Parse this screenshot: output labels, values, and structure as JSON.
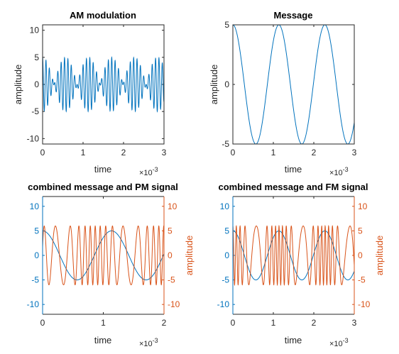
{
  "colors": {
    "blue": "#0072BD",
    "orange": "#D95319",
    "axis": "#262626"
  },
  "chart_data": [
    {
      "type": "line",
      "title": "AM modulation",
      "xlabel": "time",
      "ylabel": "amplitude",
      "x_exponent": "×10",
      "x_exponent_power": "-3",
      "xlim": [
        0,
        3
      ],
      "ylim": [
        -11,
        11
      ],
      "xticks": [
        {
          "v": 0,
          "label": "0"
        },
        {
          "v": 1,
          "label": "1"
        },
        {
          "v": 2,
          "label": "2"
        },
        {
          "v": 3,
          "label": "3"
        }
      ],
      "yticks": [
        {
          "v": -10,
          "label": "-10"
        },
        {
          "v": -5,
          "label": "-5"
        },
        {
          "v": 0,
          "label": "0"
        },
        {
          "v": 5,
          "label": "5"
        },
        {
          "v": 10,
          "label": "10"
        }
      ],
      "signal": {
        "kind": "am",
        "message_amplitude": 5,
        "message_freq_per_unit": 0.88,
        "carrier_amplitude": 1,
        "carrier_freq_per_unit": 12,
        "color": "#0072BD"
      }
    },
    {
      "type": "line",
      "title": "Message",
      "xlabel": "time",
      "ylabel": "amplitude",
      "x_exponent": "×10",
      "x_exponent_power": "-3",
      "xlim": [
        0,
        3
      ],
      "ylim": [
        -5,
        5
      ],
      "xticks": [
        {
          "v": 0,
          "label": "0"
        },
        {
          "v": 1,
          "label": "1"
        },
        {
          "v": 2,
          "label": "2"
        },
        {
          "v": 3,
          "label": "3"
        }
      ],
      "yticks": [
        {
          "v": -5,
          "label": "-5"
        },
        {
          "v": 0,
          "label": "0"
        },
        {
          "v": 5,
          "label": "5"
        }
      ],
      "signal": {
        "kind": "cos",
        "amplitude": 5,
        "freq_per_unit": 0.88,
        "color": "#0072BD"
      }
    },
    {
      "type": "line",
      "title": "combined message and PM signal",
      "xlabel": "time",
      "ylabel_right": "amplitude",
      "x_exponent": "×10",
      "x_exponent_power": "-3",
      "xlim": [
        0,
        2
      ],
      "ylim": [
        -12,
        12
      ],
      "xticks": [
        {
          "v": 0,
          "label": "0"
        },
        {
          "v": 1,
          "label": "1"
        },
        {
          "v": 2,
          "label": "2"
        }
      ],
      "yticks_left": [
        {
          "v": -10,
          "label": "-10"
        },
        {
          "v": -5,
          "label": "-5"
        },
        {
          "v": 0,
          "label": "0"
        },
        {
          "v": 5,
          "label": "5"
        },
        {
          "v": 10,
          "label": "10"
        }
      ],
      "yticks_right": [
        {
          "v": -10,
          "label": "-10"
        },
        {
          "v": -5,
          "label": "-5"
        },
        {
          "v": 0,
          "label": "0"
        },
        {
          "v": 5,
          "label": "5"
        },
        {
          "v": 10,
          "label": "10"
        }
      ],
      "series": [
        {
          "kind": "cos",
          "amplitude": 5,
          "freq_per_unit": 0.88,
          "color": "#0072BD"
        },
        {
          "kind": "pm",
          "amplitude": 6,
          "carrier_freq_per_unit": 8,
          "message_amplitude": 5,
          "message_freq_per_unit": 0.88,
          "sensitivity": 5,
          "color": "#D95319"
        }
      ]
    },
    {
      "type": "line",
      "title": "combined message and FM signal",
      "xlabel": "time",
      "ylabel_right": "amplitude",
      "x_exponent": "×10",
      "x_exponent_power": "-3",
      "xlim": [
        0,
        3
      ],
      "ylim": [
        -12,
        12
      ],
      "xticks": [
        {
          "v": 0,
          "label": "0"
        },
        {
          "v": 1,
          "label": "1"
        },
        {
          "v": 2,
          "label": "2"
        },
        {
          "v": 3,
          "label": "3"
        }
      ],
      "yticks_left": [
        {
          "v": -10,
          "label": "-10"
        },
        {
          "v": -5,
          "label": "-5"
        },
        {
          "v": 0,
          "label": "0"
        },
        {
          "v": 5,
          "label": "5"
        },
        {
          "v": 10,
          "label": "10"
        }
      ],
      "yticks_right": [
        {
          "v": -10,
          "label": "-10"
        },
        {
          "v": -5,
          "label": "-5"
        },
        {
          "v": 0,
          "label": "0"
        },
        {
          "v": 5,
          "label": "5"
        },
        {
          "v": 10,
          "label": "10"
        }
      ],
      "series": [
        {
          "kind": "cos",
          "amplitude": 5,
          "freq_per_unit": 0.88,
          "color": "#0072BD"
        },
        {
          "kind": "fm",
          "amplitude": 6,
          "carrier_freq_per_unit": 7,
          "message_amplitude": 5,
          "message_freq_per_unit": 0.88,
          "deviation_per_unit_amplitude": 1,
          "color": "#D95319"
        }
      ]
    }
  ]
}
